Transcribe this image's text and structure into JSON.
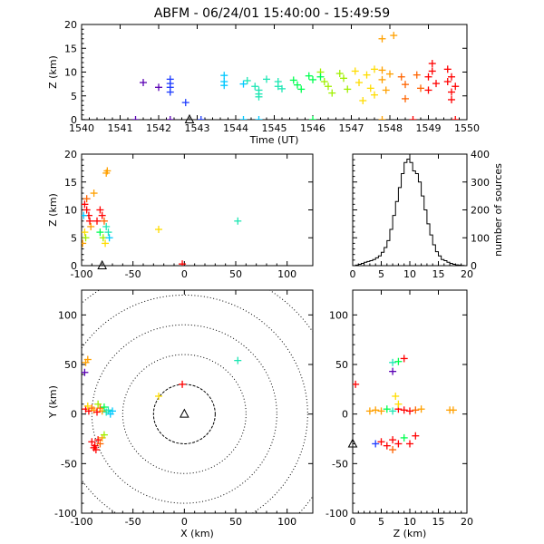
{
  "title": "ABFM - 06/24/01 15:40:00 - 15:49:59",
  "chart_data": [
    {
      "type": "scatter",
      "panel": "time-altitude",
      "xlabel": "Time (UT)",
      "ylabel": "Z (km)",
      "xlim": [
        1540,
        1550
      ],
      "ylim": [
        0,
        20
      ],
      "xticks": [
        "1540",
        "1541",
        "1542",
        "1543",
        "1544",
        "1545",
        "1546",
        "1547",
        "1548",
        "1549",
        "1550"
      ],
      "yticks": [
        "0",
        "5",
        "10",
        "15",
        "20"
      ],
      "colors": [
        "#000000",
        "#5a00b4",
        "#1e3cff",
        "#00c8ff",
        "#1ee6b4",
        "#00ff50",
        "#a0f000",
        "#ffdc00",
        "#ffa000",
        "#ff6400",
        "#ff0000"
      ],
      "points": [
        {
          "x": 1540.0,
          "y": 0,
          "c": 0
        },
        {
          "x": 1541.4,
          "y": 0,
          "c": 1
        },
        {
          "x": 1542.3,
          "y": 0,
          "c": 1
        },
        {
          "x": 1541.6,
          "y": 7.8,
          "c": 1
        },
        {
          "x": 1542.0,
          "y": 6.8,
          "c": 1
        },
        {
          "x": 1542.3,
          "y": 8.5,
          "c": 2
        },
        {
          "x": 1542.3,
          "y": 7.6,
          "c": 2
        },
        {
          "x": 1542.3,
          "y": 6.8,
          "c": 2
        },
        {
          "x": 1542.3,
          "y": 5.8,
          "c": 2
        },
        {
          "x": 1542.7,
          "y": 3.6,
          "c": 2
        },
        {
          "x": 1543.1,
          "y": 0,
          "c": 2
        },
        {
          "x": 1543.7,
          "y": 9.3,
          "c": 3
        },
        {
          "x": 1543.7,
          "y": 8.0,
          "c": 3
        },
        {
          "x": 1543.7,
          "y": 7.2,
          "c": 3
        },
        {
          "x": 1544.2,
          "y": 0,
          "c": 3
        },
        {
          "x": 1544.2,
          "y": 7.5,
          "c": 3
        },
        {
          "x": 1544.3,
          "y": 8.2,
          "c": 4
        },
        {
          "x": 1544.5,
          "y": 7.0,
          "c": 4
        },
        {
          "x": 1544.6,
          "y": 6.2,
          "c": 4
        },
        {
          "x": 1544.6,
          "y": 5.4,
          "c": 4
        },
        {
          "x": 1544.6,
          "y": 4.8,
          "c": 4
        },
        {
          "x": 1544.6,
          "y": 0,
          "c": 3
        },
        {
          "x": 1544.8,
          "y": 8.5,
          "c": 4
        },
        {
          "x": 1545.1,
          "y": 8.0,
          "c": 4
        },
        {
          "x": 1545.1,
          "y": 7.0,
          "c": 4
        },
        {
          "x": 1545.2,
          "y": 6.5,
          "c": 4
        },
        {
          "x": 1545.5,
          "y": 8.3,
          "c": 5
        },
        {
          "x": 1545.6,
          "y": 7.3,
          "c": 5
        },
        {
          "x": 1545.7,
          "y": 6.4,
          "c": 5
        },
        {
          "x": 1545.9,
          "y": 9.2,
          "c": 5
        },
        {
          "x": 1546.0,
          "y": 8.4,
          "c": 5
        },
        {
          "x": 1546.0,
          "y": 0,
          "c": 5
        },
        {
          "x": 1546.2,
          "y": 10.0,
          "c": 6
        },
        {
          "x": 1546.2,
          "y": 9.0,
          "c": 5
        },
        {
          "x": 1546.3,
          "y": 8.0,
          "c": 6
        },
        {
          "x": 1546.4,
          "y": 7.0,
          "c": 6
        },
        {
          "x": 1546.5,
          "y": 5.6,
          "c": 6
        },
        {
          "x": 1546.7,
          "y": 9.7,
          "c": 6
        },
        {
          "x": 1546.8,
          "y": 8.7,
          "c": 6
        },
        {
          "x": 1546.9,
          "y": 6.4,
          "c": 6
        },
        {
          "x": 1547.1,
          "y": 10.2,
          "c": 7
        },
        {
          "x": 1547.2,
          "y": 7.8,
          "c": 7
        },
        {
          "x": 1547.3,
          "y": 4.0,
          "c": 7
        },
        {
          "x": 1547.4,
          "y": 9.4,
          "c": 7
        },
        {
          "x": 1547.5,
          "y": 6.6,
          "c": 7
        },
        {
          "x": 1547.6,
          "y": 10.6,
          "c": 7
        },
        {
          "x": 1547.6,
          "y": 5.2,
          "c": 7
        },
        {
          "x": 1547.8,
          "y": 10.4,
          "c": 8
        },
        {
          "x": 1547.8,
          "y": 8.4,
          "c": 8
        },
        {
          "x": 1547.9,
          "y": 6.2,
          "c": 8
        },
        {
          "x": 1547.8,
          "y": 17.0,
          "c": 8
        },
        {
          "x": 1548.1,
          "y": 17.7,
          "c": 8
        },
        {
          "x": 1548.0,
          "y": 9.6,
          "c": 8
        },
        {
          "x": 1547.8,
          "y": 0,
          "c": 8
        },
        {
          "x": 1548.3,
          "y": 9.0,
          "c": 9
        },
        {
          "x": 1548.4,
          "y": 7.4,
          "c": 9
        },
        {
          "x": 1548.4,
          "y": 4.4,
          "c": 9
        },
        {
          "x": 1548.7,
          "y": 9.4,
          "c": 9
        },
        {
          "x": 1548.8,
          "y": 6.6,
          "c": 9
        },
        {
          "x": 1548.6,
          "y": 0,
          "c": 10
        },
        {
          "x": 1549.1,
          "y": 11.8,
          "c": 10
        },
        {
          "x": 1549.1,
          "y": 10.2,
          "c": 10
        },
        {
          "x": 1549.0,
          "y": 9.0,
          "c": 10
        },
        {
          "x": 1549.2,
          "y": 7.6,
          "c": 10
        },
        {
          "x": 1549.0,
          "y": 6.2,
          "c": 10
        },
        {
          "x": 1549.5,
          "y": 10.6,
          "c": 10
        },
        {
          "x": 1549.6,
          "y": 9.0,
          "c": 10
        },
        {
          "x": 1549.5,
          "y": 8.0,
          "c": 10
        },
        {
          "x": 1549.7,
          "y": 7.0,
          "c": 10
        },
        {
          "x": 1549.6,
          "y": 5.8,
          "c": 10
        },
        {
          "x": 1549.6,
          "y": 4.2,
          "c": 10
        },
        {
          "x": 1549.7,
          "y": 0,
          "c": 10
        }
      ],
      "markers": [
        {
          "x": 1542.8,
          "y": 0,
          "shape": "triangle"
        }
      ]
    },
    {
      "type": "scatter",
      "panel": "x-altitude",
      "ylabel": "Z (km)",
      "xlim": [
        -100,
        125
      ],
      "ylim": [
        0,
        20
      ],
      "xticks": [
        "-100",
        "-50",
        "0",
        "50",
        "100"
      ],
      "yticks": [
        "0",
        "5",
        "10",
        "15",
        "20"
      ],
      "points": [
        {
          "x": -97,
          "y": 11,
          "c": 10
        },
        {
          "x": -95,
          "y": 10,
          "c": 10
        },
        {
          "x": -93,
          "y": 9,
          "c": 10
        },
        {
          "x": -91,
          "y": 7,
          "c": 8
        },
        {
          "x": -92,
          "y": 8,
          "c": 10
        },
        {
          "x": -97,
          "y": 6,
          "c": 7
        },
        {
          "x": -99,
          "y": 4,
          "c": 8
        },
        {
          "x": -95,
          "y": 12,
          "c": 9
        },
        {
          "x": -96,
          "y": 5,
          "c": 6
        },
        {
          "x": -98,
          "y": 9,
          "c": 3
        },
        {
          "x": -82,
          "y": 10,
          "c": 10
        },
        {
          "x": -80,
          "y": 9,
          "c": 10
        },
        {
          "x": -78,
          "y": 8,
          "c": 9
        },
        {
          "x": -76,
          "y": 7,
          "c": 4
        },
        {
          "x": -74,
          "y": 6,
          "c": 4
        },
        {
          "x": -85,
          "y": 8,
          "c": 10
        },
        {
          "x": -82,
          "y": 6,
          "c": 5
        },
        {
          "x": -79,
          "y": 5,
          "c": 6
        },
        {
          "x": -77,
          "y": 4,
          "c": 7
        },
        {
          "x": -73,
          "y": 5,
          "c": 3
        },
        {
          "x": -75,
          "y": 17,
          "c": 8
        },
        {
          "x": -76,
          "y": 16.6,
          "c": 8
        },
        {
          "x": -88,
          "y": 13,
          "c": 8
        },
        {
          "x": -25,
          "y": 6.5,
          "c": 7
        },
        {
          "x": 52,
          "y": 8,
          "c": 4
        },
        {
          "x": -2,
          "y": 0.3,
          "c": 10
        }
      ],
      "markers": [
        {
          "x": -80,
          "y": 0,
          "shape": "triangle"
        }
      ]
    },
    {
      "type": "bar",
      "panel": "altitude-histogram",
      "ylabel": "number of sources",
      "xlim": [
        0,
        20
      ],
      "ylim": [
        0,
        400
      ],
      "xticks": [
        "0",
        "5",
        "10",
        "15",
        "20"
      ],
      "yticks": [
        "0",
        "100",
        "200",
        "300",
        "400"
      ],
      "bin_width": 0.5,
      "bins_start": 0,
      "values": [
        0,
        2,
        5,
        8,
        12,
        15,
        18,
        22,
        28,
        35,
        48,
        65,
        90,
        130,
        180,
        230,
        280,
        330,
        370,
        382,
        370,
        340,
        330,
        300,
        250,
        200,
        150,
        110,
        75,
        50,
        35,
        22,
        18,
        12,
        8,
        5,
        3,
        2,
        1,
        0
      ]
    },
    {
      "type": "scatter",
      "panel": "plan-view",
      "xlabel": "X (km)",
      "ylabel": "Y (km)",
      "xlim": [
        -100,
        125
      ],
      "ylim": [
        -100,
        125
      ],
      "xticks": [
        "-100",
        "-50",
        "0",
        "50",
        "100"
      ],
      "yticks": [
        "-100",
        "-50",
        "0",
        "50",
        "100"
      ],
      "range_rings_km": [
        30,
        60,
        90,
        120,
        150
      ],
      "points": [
        {
          "x": -96,
          "y": 5,
          "c": 10
        },
        {
          "x": -93,
          "y": 3,
          "c": 10
        },
        {
          "x": -90,
          "y": 6,
          "c": 9
        },
        {
          "x": -88,
          "y": 4,
          "c": 8
        },
        {
          "x": -85,
          "y": 2,
          "c": 10
        },
        {
          "x": -82,
          "y": 6,
          "c": 9
        },
        {
          "x": -80,
          "y": 3,
          "c": 8
        },
        {
          "x": -78,
          "y": 7,
          "c": 5
        },
        {
          "x": -76,
          "y": 2,
          "c": 4
        },
        {
          "x": -74,
          "y": 4,
          "c": 4
        },
        {
          "x": -72,
          "y": 0,
          "c": 3
        },
        {
          "x": -70,
          "y": 3,
          "c": 3
        },
        {
          "x": -94,
          "y": 8,
          "c": 7
        },
        {
          "x": -84,
          "y": 10,
          "c": 6
        },
        {
          "x": -90,
          "y": -28,
          "c": 10
        },
        {
          "x": -87,
          "y": -32,
          "c": 10
        },
        {
          "x": -84,
          "y": -26,
          "c": 10
        },
        {
          "x": -82,
          "y": -30,
          "c": 9
        },
        {
          "x": -80,
          "y": -24,
          "c": 8
        },
        {
          "x": -78,
          "y": -21,
          "c": 6
        },
        {
          "x": -86,
          "y": -36,
          "c": 10
        },
        {
          "x": -88,
          "y": -34,
          "c": 10
        },
        {
          "x": -96,
          "y": 52,
          "c": 8
        },
        {
          "x": -97,
          "y": 42,
          "c": 1
        },
        {
          "x": -94,
          "y": 55,
          "c": 8
        },
        {
          "x": 52,
          "y": 54,
          "c": 4
        },
        {
          "x": -2,
          "y": 30,
          "c": 10
        },
        {
          "x": -25,
          "y": 18,
          "c": 7
        }
      ],
      "markers": [
        {
          "x": 0,
          "y": 0,
          "shape": "triangle"
        }
      ]
    },
    {
      "type": "scatter",
      "panel": "altitude-y",
      "xlabel": "Z (km)",
      "xlim": [
        0,
        20
      ],
      "ylim": [
        -100,
        125
      ],
      "xticks": [
        "0",
        "5",
        "10",
        "15",
        "20"
      ],
      "yticks": [
        "-100",
        "-50",
        "0",
        "50",
        "100"
      ],
      "points": [
        {
          "x": 3,
          "y": 3,
          "c": 8
        },
        {
          "x": 4,
          "y": 4,
          "c": 8
        },
        {
          "x": 5,
          "y": 3,
          "c": 8
        },
        {
          "x": 6,
          "y": 5,
          "c": 5
        },
        {
          "x": 7,
          "y": 3,
          "c": 4
        },
        {
          "x": 8,
          "y": 5,
          "c": 10
        },
        {
          "x": 9,
          "y": 4,
          "c": 10
        },
        {
          "x": 10,
          "y": 3,
          "c": 10
        },
        {
          "x": 11,
          "y": 4,
          "c": 9
        },
        {
          "x": 12,
          "y": 5,
          "c": 8
        },
        {
          "x": 17,
          "y": 4,
          "c": 8
        },
        {
          "x": 17.6,
          "y": 4,
          "c": 8
        },
        {
          "x": 8,
          "y": 10,
          "c": 7
        },
        {
          "x": 4,
          "y": -30,
          "c": 2
        },
        {
          "x": 5,
          "y": -28,
          "c": 10
        },
        {
          "x": 6,
          "y": -32,
          "c": 10
        },
        {
          "x": 7,
          "y": -26,
          "c": 10
        },
        {
          "x": 8,
          "y": -30,
          "c": 10
        },
        {
          "x": 9,
          "y": -24,
          "c": 5
        },
        {
          "x": 10,
          "y": -30,
          "c": 10
        },
        {
          "x": 11,
          "y": -22,
          "c": 10
        },
        {
          "x": 7,
          "y": -36,
          "c": 9
        },
        {
          "x": 7,
          "y": 52,
          "c": 4
        },
        {
          "x": 8,
          "y": 53,
          "c": 5
        },
        {
          "x": 7,
          "y": 43,
          "c": 1
        },
        {
          "x": 9,
          "y": 56,
          "c": 10
        },
        {
          "x": 0.5,
          "y": 30,
          "c": 10
        },
        {
          "x": 7.5,
          "y": 18,
          "c": 7
        }
      ],
      "markers": [
        {
          "x": 0,
          "y": -30,
          "shape": "triangle"
        }
      ]
    }
  ]
}
